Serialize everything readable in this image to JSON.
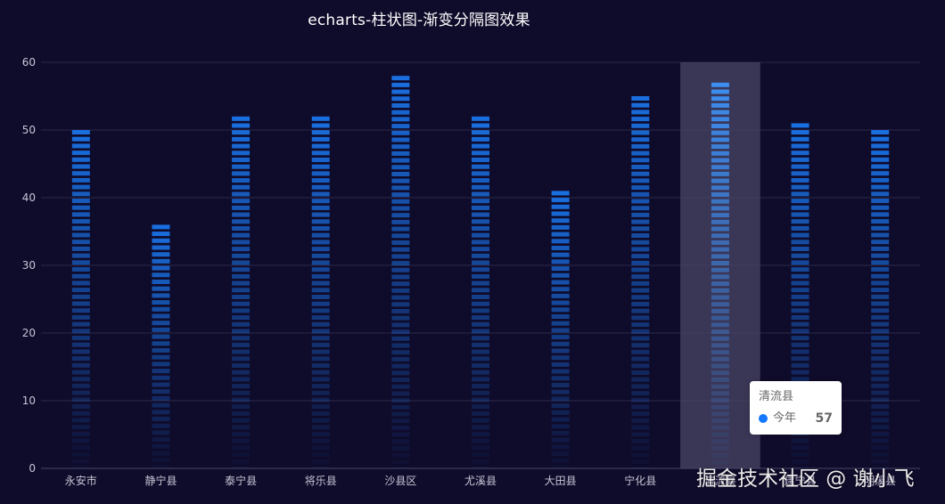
{
  "chart_data": {
    "type": "bar",
    "title": "echarts-柱状图-渐变分隔图效果",
    "categories": [
      "永安市",
      "静宁县",
      "泰宁县",
      "将乐县",
      "沙县区",
      "尤溪县",
      "大田县",
      "宁化县",
      "清流县",
      "建宁县",
      "明溪县"
    ],
    "series": [
      {
        "name": "今年",
        "values": [
          50,
          36,
          52,
          52,
          58,
          52,
          41,
          55,
          57,
          51,
          50
        ]
      }
    ],
    "ylim": [
      0,
      60
    ],
    "yticks": [
      0,
      10,
      20,
      30,
      40,
      50,
      60
    ],
    "grid": true,
    "legend": "none",
    "highlight_index": 8,
    "colors": {
      "background": "#0f0b2a",
      "bar_top": "#1a6fe0",
      "bar_bottom": "#0f0b2a",
      "grid": "#2e2a4a",
      "axis_label": "#c7c5d6",
      "highlight_band": "#4a4666",
      "series_dot": "#1677ff"
    }
  },
  "tooltip": {
    "title": "清流县",
    "series_name": "今年",
    "value": "57"
  },
  "watermark": "掘金技术社区 @ 谢小飞"
}
